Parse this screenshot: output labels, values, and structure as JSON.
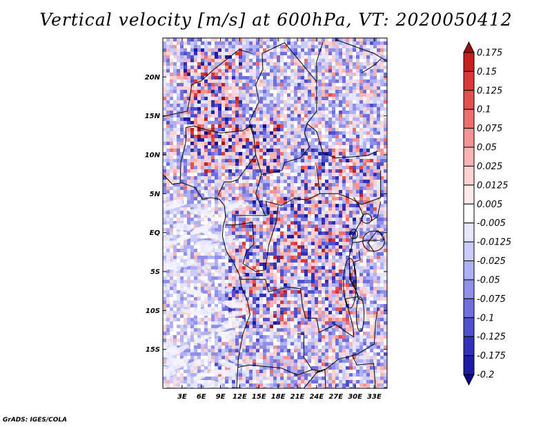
{
  "title": "Vertical velocity [m/s] at 600hPa, VT: 2020050412",
  "credit": "GrADS: IGES/COLA",
  "map": {
    "lon_range": [
      0,
      35
    ],
    "lat_range": [
      -20,
      25
    ],
    "lat_ticks": [
      {
        "value": 20,
        "label": "20N"
      },
      {
        "value": 15,
        "label": "15N"
      },
      {
        "value": 10,
        "label": "10N"
      },
      {
        "value": 5,
        "label": "5N"
      },
      {
        "value": 0,
        "label": "EQ"
      },
      {
        "value": -5,
        "label": "5S"
      },
      {
        "value": -10,
        "label": "10S"
      },
      {
        "value": -15,
        "label": "15S"
      }
    ],
    "lon_ticks": [
      {
        "value": 3,
        "label": "3E"
      },
      {
        "value": 6,
        "label": "6E"
      },
      {
        "value": 9,
        "label": "9E"
      },
      {
        "value": 12,
        "label": "12E"
      },
      {
        "value": 15,
        "label": "15E"
      },
      {
        "value": 18,
        "label": "18E"
      },
      {
        "value": 21,
        "label": "21E"
      },
      {
        "value": 24,
        "label": "24E"
      },
      {
        "value": 27,
        "label": "27E"
      },
      {
        "value": 30,
        "label": "30E"
      },
      {
        "value": 33,
        "label": "33E"
      }
    ]
  },
  "colorbar": {
    "levels": [
      "0.175",
      "0.15",
      "0.125",
      "0.1",
      "0.075",
      "0.05",
      "0.025",
      "0.0125",
      "0.005",
      "-0.005",
      "-0.0125",
      "-0.025",
      "-0.05",
      "-0.075",
      "-0.1",
      "-0.125",
      "-0.175",
      "-0.2"
    ],
    "colors": [
      "#a01010",
      "#c42020",
      "#d83838",
      "#e45050",
      "#ec7070",
      "#f49494",
      "#f8b4b4",
      "#fcd2d2",
      "#ffeaea",
      "#ffffff",
      "#e6e6ff",
      "#ccccfa",
      "#b0b0f4",
      "#9090ea",
      "#7070dc",
      "#5050cc",
      "#3030b8",
      "#1c1ca4",
      "#100090"
    ]
  }
}
